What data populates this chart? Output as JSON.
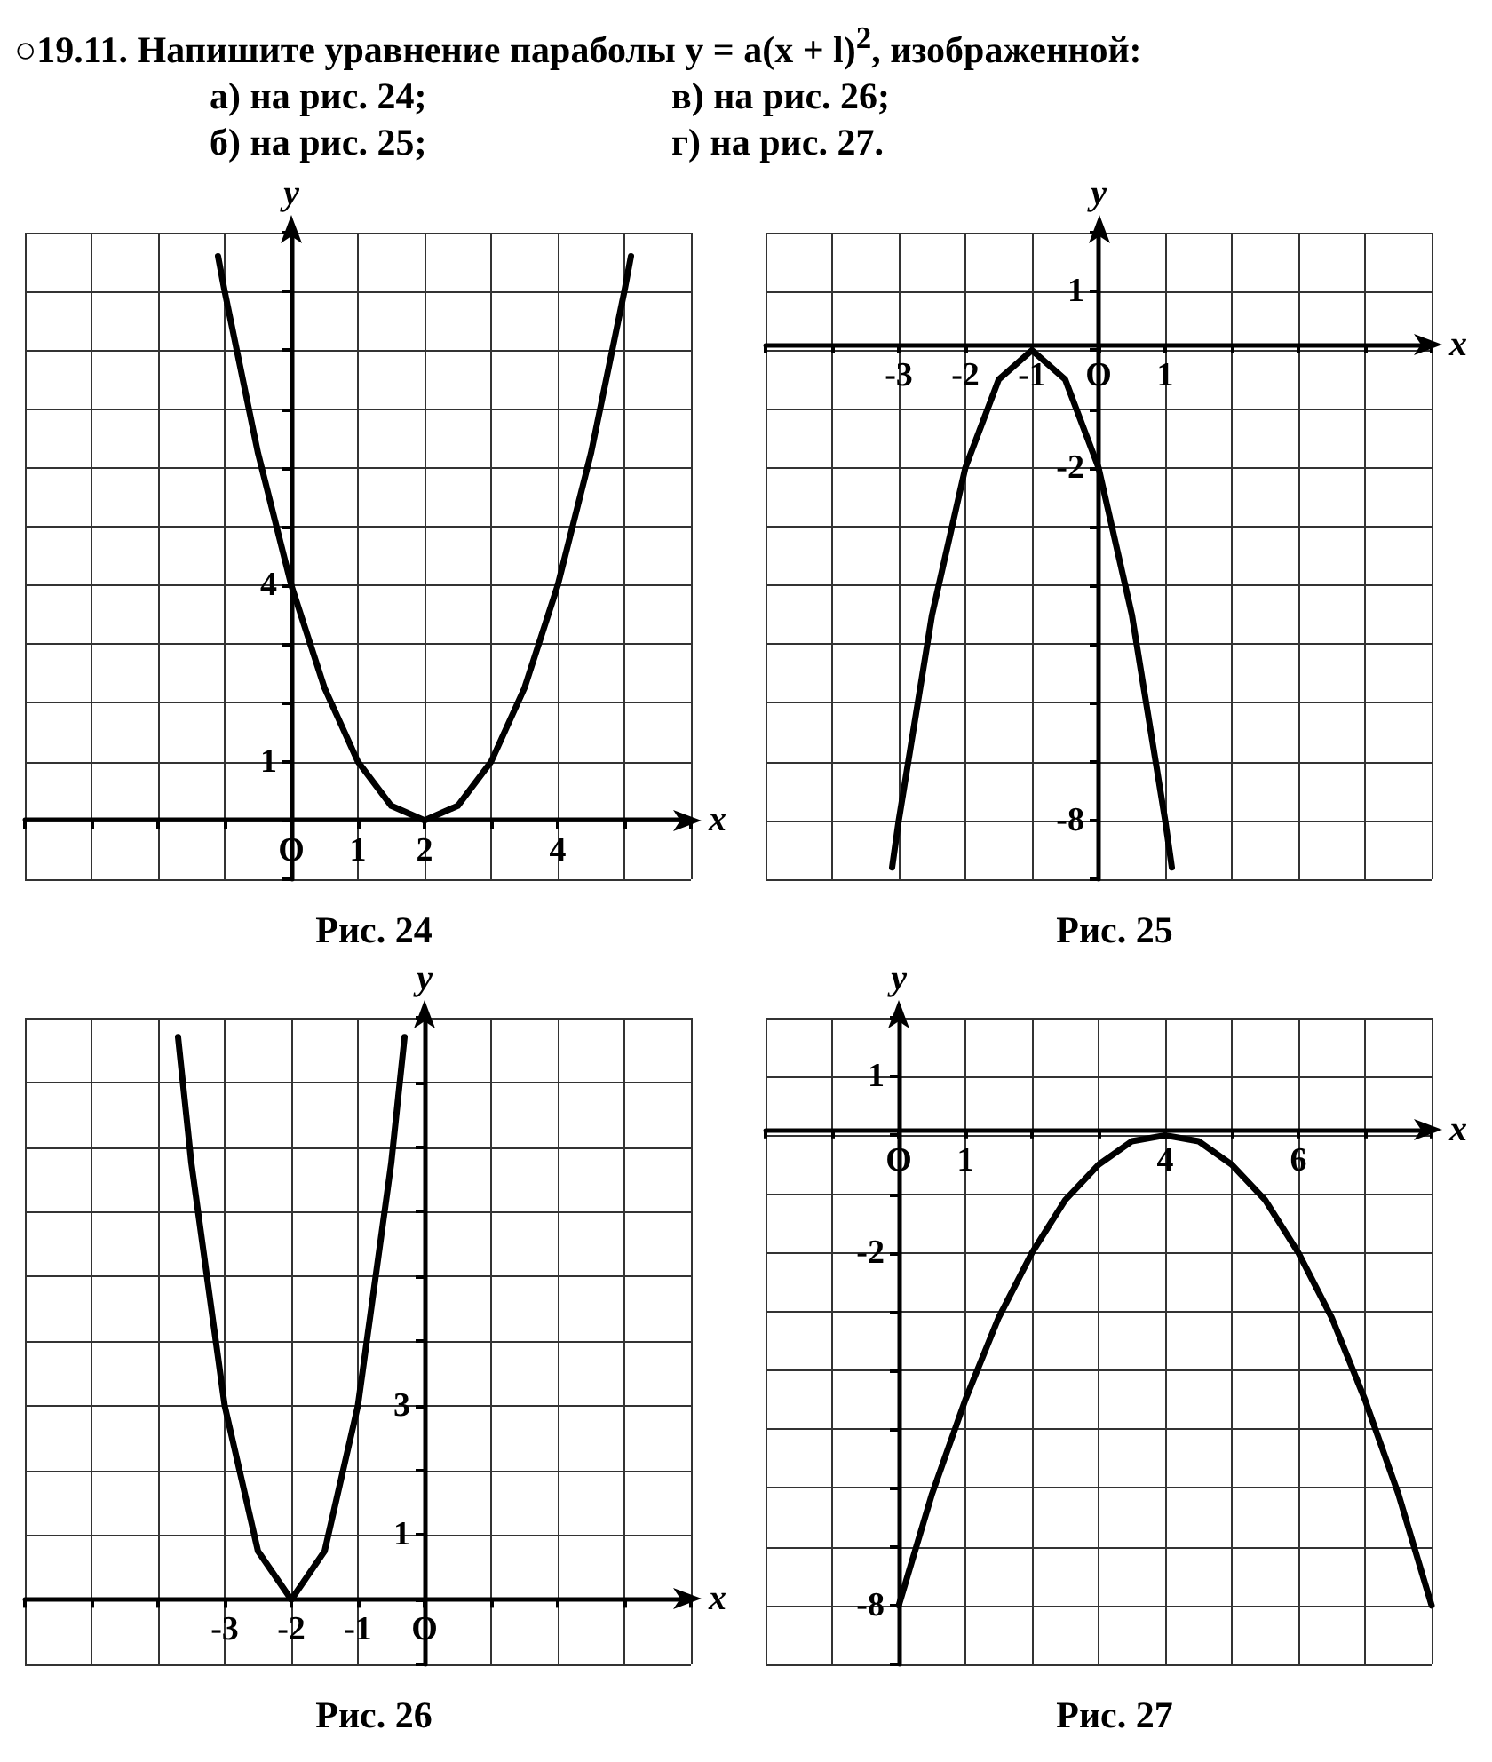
{
  "chart_data": [
    {
      "type": "line",
      "title": "Рис. 24",
      "annotations": [
        "○19.11. Напишите уравнение параболы y = a(x + l)$^{2}$, изображенной:",
        "а) на рис. 24;",
        "в) на рис. 26;",
        "б) на рис. 25;",
        "г) на рис. 27."
      ],
      "xlabel": "x",
      "ylabel": "y",
      "grid": true,
      "marker": "none",
      "line_style": "solid",
      "x": [
        -1.1,
        -1,
        -0.5,
        0,
        0.5,
        1,
        1.5,
        2,
        2.5,
        3,
        3.5,
        4,
        4.5,
        5,
        5.1
      ],
      "series": [
        {
          "color": "#000000",
          "values": [
            9.6,
            9,
            6.25,
            4,
            2.25,
            1,
            0.25,
            0,
            0.25,
            1,
            2.25,
            4,
            6.25,
            9,
            9.6
          ]
        }
      ],
      "xlim": [
        -4,
        6
      ],
      "xticks": [
        {
          "value": -4,
          "label": null
        },
        {
          "value": -3,
          "label": null
        },
        {
          "value": -2,
          "label": null
        },
        {
          "value": -1,
          "label": null
        },
        {
          "value": 0,
          "label": "O"
        },
        1,
        2,
        {
          "value": 3,
          "label": null
        },
        4,
        {
          "value": 5,
          "label": null
        },
        {
          "value": 6,
          "label": null
        }
      ],
      "ylim": [
        -1,
        10
      ],
      "yticks": [
        {
          "value": -1,
          "label": null
        },
        {
          "value": 0,
          "label": null
        },
        1,
        {
          "value": 2,
          "label": null
        },
        {
          "value": 3,
          "label": null
        },
        4,
        {
          "value": 5,
          "label": null
        },
        {
          "value": 6,
          "label": null
        },
        {
          "value": 7,
          "label": null
        },
        {
          "value": 8,
          "label": null
        },
        {
          "value": 9,
          "label": null
        },
        {
          "value": 10,
          "label": null
        }
      ]
    },
    {
      "type": "line",
      "title": "Рис. 25",
      "xlabel": "x",
      "ylabel": "y",
      "grid": true,
      "marker": "none",
      "line_style": "solid",
      "x": [
        -3.1,
        -3,
        -2.5,
        -2,
        -1.5,
        -1,
        -0.5,
        0,
        0.5,
        1,
        1.1
      ],
      "series": [
        {
          "color": "#000000",
          "values": [
            -8.8,
            -8,
            -4.5,
            -2,
            -0.5,
            0,
            -0.5,
            -2,
            -4.5,
            -8,
            -8.8
          ]
        }
      ],
      "xlim": [
        -5,
        5
      ],
      "xticks": [
        {
          "value": -5,
          "label": null
        },
        {
          "value": -4,
          "label": null
        },
        -3,
        -2,
        -1,
        {
          "value": 0,
          "label": "O"
        },
        1,
        {
          "value": 2,
          "label": null
        },
        {
          "value": 3,
          "label": null
        },
        {
          "value": 4,
          "label": null
        },
        {
          "value": 5,
          "label": null
        }
      ],
      "ylim": [
        -9,
        2
      ],
      "yticks": [
        {
          "value": -9,
          "label": null
        },
        -8,
        {
          "value": -7,
          "label": null
        },
        {
          "value": -6,
          "label": null
        },
        {
          "value": -5,
          "label": null
        },
        {
          "value": -4,
          "label": null
        },
        {
          "value": -3,
          "label": null
        },
        -2,
        {
          "value": -1,
          "label": null
        },
        {
          "value": 0,
          "label": null
        },
        1,
        {
          "value": 2,
          "label": null
        }
      ]
    },
    {
      "type": "line",
      "title": "Рис. 26",
      "xlabel": "x",
      "ylabel": "y",
      "grid": true,
      "marker": "none",
      "line_style": "solid",
      "x": [
        -3.7,
        -3.5,
        -3,
        -2.5,
        -2,
        -1.5,
        -1,
        -0.5,
        -0.3
      ],
      "series": [
        {
          "color": "#000000",
          "values": [
            8.7,
            6.75,
            3,
            0.75,
            0,
            0.75,
            3,
            6.75,
            8.7
          ]
        }
      ],
      "xlim": [
        -6,
        4
      ],
      "xticks": [
        {
          "value": -6,
          "label": null
        },
        {
          "value": -5,
          "label": null
        },
        {
          "value": -4,
          "label": null
        },
        -3,
        -2,
        -1,
        {
          "value": 0,
          "label": "O"
        },
        {
          "value": 1,
          "label": null
        },
        {
          "value": 2,
          "label": null
        },
        {
          "value": 3,
          "label": null
        },
        {
          "value": 4,
          "label": null
        }
      ],
      "ylim": [
        -1,
        9
      ],
      "yticks": [
        {
          "value": -1,
          "label": null
        },
        {
          "value": 0,
          "label": null
        },
        1,
        {
          "value": 2,
          "label": null
        },
        3,
        {
          "value": 4,
          "label": null
        },
        {
          "value": 5,
          "label": null
        },
        {
          "value": 6,
          "label": null
        },
        {
          "value": 7,
          "label": null
        },
        {
          "value": 8,
          "label": null
        },
        {
          "value": 9,
          "label": null
        }
      ]
    },
    {
      "type": "line",
      "title": "Рис. 27",
      "xlabel": "x",
      "ylabel": "y",
      "grid": true,
      "marker": "none",
      "line_style": "solid",
      "x": [
        0,
        0.5,
        1,
        1.5,
        2,
        2.5,
        3,
        3.5,
        4,
        4.5,
        5,
        5.5,
        6,
        6.5,
        7,
        7.5,
        8
      ],
      "series": [
        {
          "color": "#000000",
          "values": [
            -8,
            -6.1,
            -4.5,
            -3.1,
            -2,
            -1.1,
            -0.5,
            -0.1,
            0,
            -0.1,
            -0.5,
            -1.1,
            -2,
            -3.1,
            -4.5,
            -6.1,
            -8
          ]
        }
      ],
      "xlim": [
        -2,
        8
      ],
      "xticks": [
        {
          "value": -2,
          "label": null
        },
        {
          "value": -1,
          "label": null
        },
        {
          "value": 0,
          "label": "O"
        },
        1,
        {
          "value": 2,
          "label": null
        },
        {
          "value": 3,
          "label": null
        },
        4,
        {
          "value": 5,
          "label": null
        },
        6,
        {
          "value": 7,
          "label": null
        },
        {
          "value": 8,
          "label": null
        }
      ],
      "ylim": [
        -9,
        2
      ],
      "yticks": [
        {
          "value": -9,
          "label": null
        },
        -8,
        {
          "value": -7,
          "label": null
        },
        {
          "value": -6,
          "label": null
        },
        {
          "value": -5,
          "label": null
        },
        {
          "value": -4,
          "label": null
        },
        {
          "value": -3,
          "label": null
        },
        -2,
        {
          "value": -1,
          "label": null
        },
        {
          "value": 0,
          "label": null
        },
        1,
        {
          "value": 2,
          "label": null
        }
      ]
    }
  ]
}
